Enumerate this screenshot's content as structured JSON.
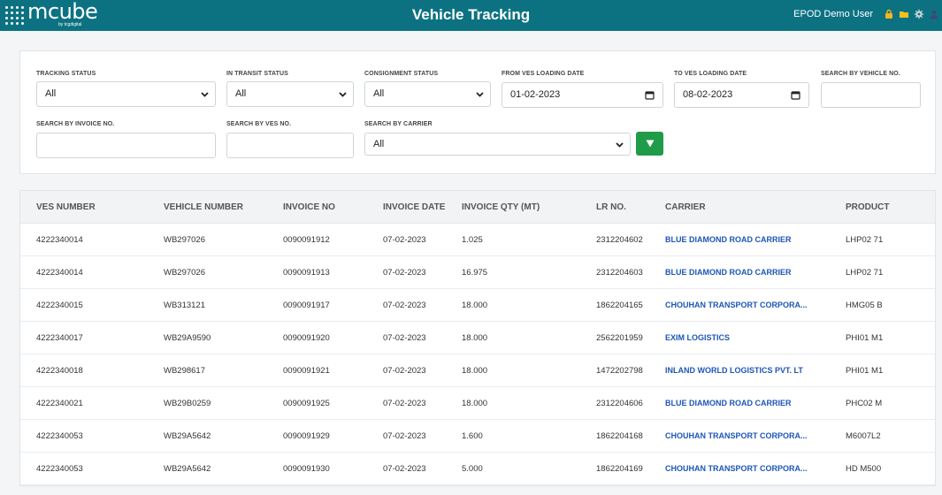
{
  "header": {
    "logo_text": "mcube",
    "logo_sub": "by tcgdigital",
    "title": "Vehicle Tracking",
    "user": "EPOD Demo User",
    "icons": [
      "lock-icon",
      "folder-icon",
      "gear-icon",
      "user-icon"
    ]
  },
  "filters": {
    "tracking_status": {
      "label": "TRACKING STATUS",
      "value": "All"
    },
    "in_transit_status": {
      "label": "IN TRANSIT STATUS",
      "value": "All"
    },
    "consignment_status": {
      "label": "CONSIGNMENT STATUS",
      "value": "All"
    },
    "from_date": {
      "label": "FROM VES LOADING DATE",
      "value": "01-02-2023"
    },
    "to_date": {
      "label": "TO VES LOADING DATE",
      "value": "08-02-2023"
    },
    "vehicle_no": {
      "label": "SEARCH BY VEHICLE NO.",
      "value": ""
    },
    "invoice_no": {
      "label": "SEARCH BY INVOICE NO.",
      "value": ""
    },
    "ves_no": {
      "label": "SEARCH BY VES NO.",
      "value": ""
    },
    "carrier": {
      "label": "SEARCH BY CARRIER",
      "value": "All"
    }
  },
  "table": {
    "columns": [
      "VES NUMBER",
      "VEHICLE NUMBER",
      "INVOICE NO",
      "INVOICE DATE",
      "INVOICE QTY (MT)",
      "LR NO.",
      "CARRIER",
      "PRODUCT"
    ],
    "rows": [
      [
        "4222340014",
        "WB297026",
        "0090091912",
        "07-02-2023",
        "1.025",
        "2312204602",
        "BLUE DIAMOND ROAD CARRIER",
        "LHP02 71"
      ],
      [
        "4222340014",
        "WB297026",
        "0090091913",
        "07-02-2023",
        "16.975",
        "2312204603",
        "BLUE DIAMOND ROAD CARRIER",
        "LHP02 71"
      ],
      [
        "4222340015",
        "WB313121",
        "0090091917",
        "07-02-2023",
        "18.000",
        "1862204165",
        "CHOUHAN TRANSPORT CORPORA...",
        "HMG05 B"
      ],
      [
        "4222340017",
        "WB29A9590",
        "0090091920",
        "07-02-2023",
        "18.000",
        "2562201959",
        "EXIM LOGISTICS",
        "PHI01 M1"
      ],
      [
        "4222340018",
        "WB298617",
        "0090091921",
        "07-02-2023",
        "18.000",
        "1472202798",
        "INLAND WORLD LOGISTICS PVT. LT",
        "PHI01 M1"
      ],
      [
        "4222340021",
        "WB29B0259",
        "0090091925",
        "07-02-2023",
        "18.000",
        "2312204606",
        "BLUE DIAMOND ROAD CARRIER",
        "PHC02 M"
      ],
      [
        "4222340053",
        "WB29A5642",
        "0090091929",
        "07-02-2023",
        "1.600",
        "1862204168",
        "CHOUHAN TRANSPORT CORPORA...",
        "M6007L2"
      ],
      [
        "4222340053",
        "WB29A5642",
        "0090091930",
        "07-02-2023",
        "5.000",
        "1862204169",
        "CHOUHAN TRANSPORT CORPORA...",
        "HD M500"
      ]
    ]
  },
  "colors": {
    "header_bg": "#0c7282",
    "carrier_link": "#1d56b8",
    "filter_button": "#1f9b4a"
  }
}
